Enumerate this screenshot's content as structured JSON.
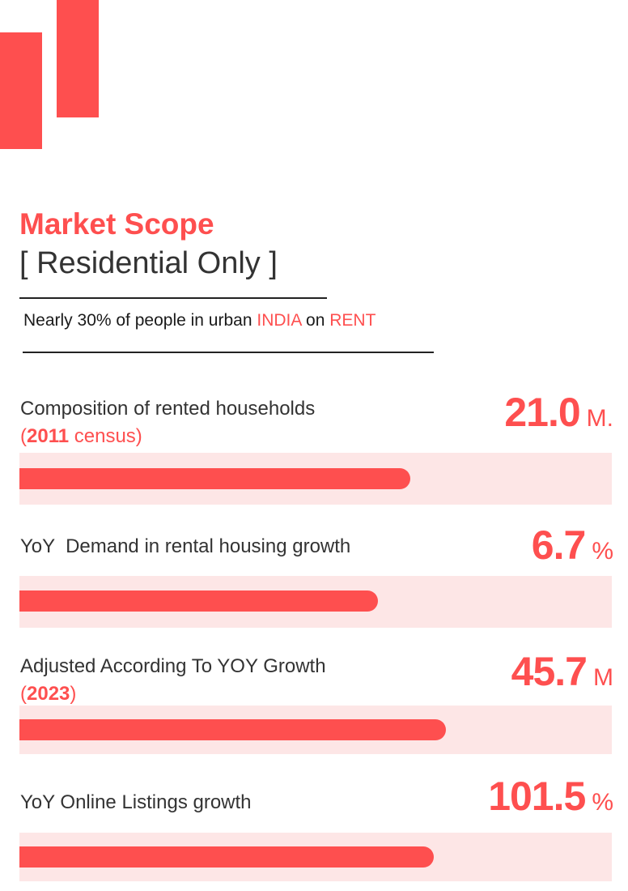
{
  "colors": {
    "accent": "#fe4f4f",
    "track": "#fde6e6",
    "text": "#333333"
  },
  "header": {
    "title": "Market Scope",
    "subtitle": "[ Residential Only ]"
  },
  "tagline": {
    "prefix": "Nearly 30% of people in urban ",
    "country": "INDIA",
    "middle": " on ",
    "status": "RENT"
  },
  "stats": [
    {
      "label": "Composition of rented households",
      "sub_open": "(",
      "sub_bold": "2011",
      "sub_rest": " census)",
      "value": "21.0",
      "unit": "M.",
      "bar_fraction": 0.66
    },
    {
      "label": "YoY  Demand in rental housing growth",
      "value": "6.7",
      "unit": "%",
      "bar_fraction": 0.605
    },
    {
      "label": "Adjusted According To YOY Growth",
      "sub_open": "(",
      "sub_bold": "2023",
      "sub_rest": ")",
      "value": "45.7",
      "unit": "M",
      "bar_fraction": 0.72
    },
    {
      "label": "YoY Online Listings growth",
      "value": "101.5",
      "unit": "%",
      "bar_fraction": 0.7
    }
  ]
}
